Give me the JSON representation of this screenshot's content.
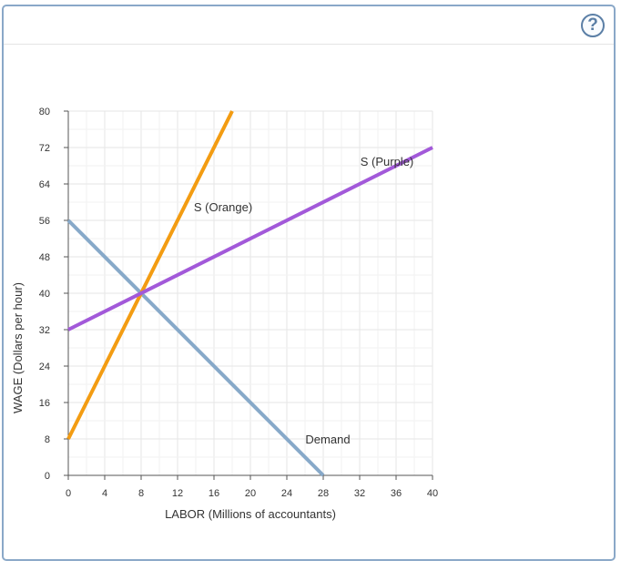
{
  "help": {
    "label": "?"
  },
  "chart_data": {
    "type": "line",
    "xlabel": "LABOR (Millions of accountants)",
    "ylabel": "WAGE (Dollars per hour)",
    "xlim": [
      0,
      40
    ],
    "ylim": [
      0,
      80
    ],
    "x_ticks": [
      0,
      4,
      8,
      12,
      16,
      20,
      24,
      28,
      32,
      36,
      40
    ],
    "y_ticks": [
      0,
      8,
      16,
      24,
      32,
      40,
      48,
      56,
      64,
      72,
      80
    ],
    "grid": true,
    "series": [
      {
        "name": "Demand",
        "color": "#87a9c9",
        "points": [
          [
            0,
            56
          ],
          [
            28,
            0
          ]
        ]
      },
      {
        "name": "S (Orange)",
        "color": "#f39c12",
        "points": [
          [
            0,
            8
          ],
          [
            18,
            80
          ]
        ]
      },
      {
        "name": "S (Purple)",
        "color": "#a259d9",
        "points": [
          [
            0,
            32
          ],
          [
            40,
            72
          ]
        ]
      }
    ],
    "annotations": [
      {
        "text": "S (Purple)",
        "x": 35,
        "y": 68
      },
      {
        "text": "S (Orange)",
        "x": 17,
        "y": 58
      },
      {
        "text": "Demand",
        "x": 28.5,
        "y": 7
      }
    ]
  }
}
